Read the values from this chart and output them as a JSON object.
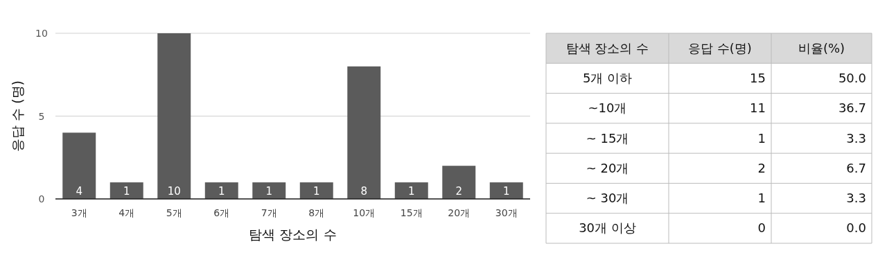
{
  "chart_data": [
    {
      "type": "bar",
      "xlabel": "탐색 장소의 수",
      "ylabel": "응답 수 (명)",
      "categories": [
        "3개",
        "4개",
        "5개",
        "6개",
        "7개",
        "8개",
        "10개",
        "15개",
        "20개",
        "30개"
      ],
      "values": [
        4,
        1,
        10,
        1,
        1,
        1,
        8,
        1,
        2,
        1
      ],
      "color": "#5b5b5b",
      "ylim": [
        0,
        10
      ],
      "yticks": [
        0,
        5,
        10
      ],
      "grid": "y",
      "data_labels": true
    },
    {
      "type": "other",
      "xlabel": "탐색 장소의 수",
      "categories": [
        "5개 이하",
        "~10개",
        "~ 15개",
        "~ 20개",
        "~ 30개",
        "30개 이상"
      ],
      "series": [
        {
          "name": "응답 수(명)",
          "values": [
            15,
            11,
            1,
            2,
            1,
            0
          ]
        },
        {
          "name": "비율(%)",
          "values": [
            50.0,
            36.7,
            3.3,
            6.7,
            3.3,
            0.0
          ],
          "value_labels": [
            "50.0",
            "36.7",
            "3.3",
            "6.7",
            "3.3",
            "0.0"
          ]
        }
      ],
      "data_labels": true
    }
  ]
}
